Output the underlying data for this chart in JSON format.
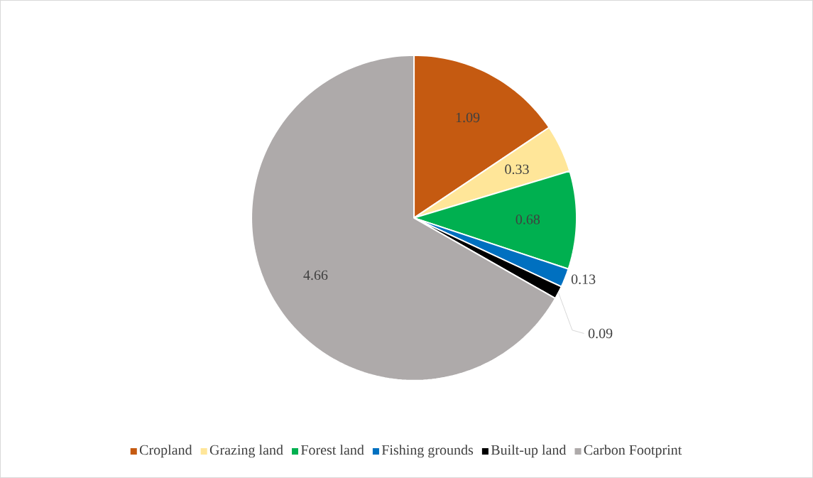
{
  "chart_data": {
    "type": "pie",
    "categories": [
      "Cropland",
      "Grazing land",
      "Forest land",
      "Fishing grounds",
      "Built-up land",
      "Carbon Footprint"
    ],
    "values": [
      1.09,
      0.33,
      0.68,
      0.13,
      0.09,
      4.66
    ],
    "colors": [
      "#c55a11",
      "#ffe699",
      "#00b050",
      "#0070c0",
      "#000000",
      "#aeaaaa"
    ],
    "data_labels": true,
    "legend": "bottom"
  }
}
